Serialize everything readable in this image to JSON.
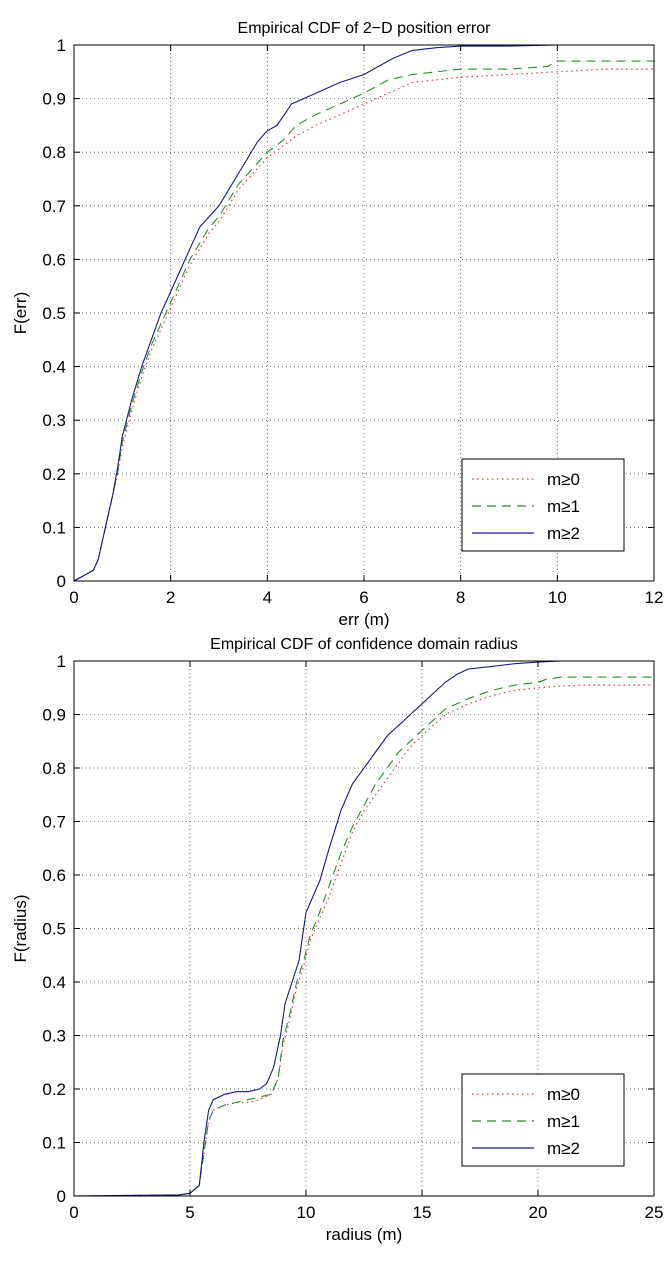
{
  "colors": {
    "m0": "#d04040",
    "m1": "#2e8b2e",
    "m2": "#1a1a8c",
    "grid": "#555555",
    "axes": "#000000"
  },
  "chart_data": [
    {
      "type": "line",
      "title": "Empirical CDF of 2−D position error",
      "xlabel": "err (m)",
      "ylabel": "F(err)",
      "xlim": [
        0,
        12
      ],
      "ylim": [
        0,
        1
      ],
      "xticks": [
        0,
        2,
        4,
        6,
        8,
        10,
        12
      ],
      "yticks": [
        0,
        0.1,
        0.2,
        0.3,
        0.4,
        0.5,
        0.6,
        0.7,
        0.8,
        0.9,
        1
      ],
      "xtick_labels": [
        "0",
        "2",
        "4",
        "6",
        "8",
        "10",
        "12"
      ],
      "ytick_labels": [
        "0",
        "0.1",
        "0.2",
        "0.3",
        "0.4",
        "0.5",
        "0.6",
        "0.7",
        "0.8",
        "0.9",
        "1"
      ],
      "grid": true,
      "legend_position": "bottom-right",
      "series": [
        {
          "name": "m≥0",
          "style": "dotted",
          "color": "#d04040",
          "x": [
            0,
            0.2,
            0.4,
            0.5,
            0.6,
            0.7,
            0.8,
            0.9,
            1.0,
            1.2,
            1.4,
            1.6,
            1.8,
            2.0,
            2.2,
            2.4,
            2.6,
            2.8,
            3.0,
            3.2,
            3.4,
            3.6,
            3.8,
            4.0,
            4.3,
            4.6,
            5.0,
            5.5,
            6.0,
            6.5,
            7.0,
            7.5,
            8.0,
            9.0,
            10.0,
            11.0,
            12.0
          ],
          "y": [
            0,
            0.01,
            0.02,
            0.04,
            0.08,
            0.12,
            0.16,
            0.2,
            0.25,
            0.32,
            0.38,
            0.43,
            0.47,
            0.51,
            0.55,
            0.59,
            0.62,
            0.65,
            0.67,
            0.7,
            0.73,
            0.75,
            0.77,
            0.79,
            0.81,
            0.83,
            0.85,
            0.87,
            0.89,
            0.91,
            0.93,
            0.935,
            0.94,
            0.945,
            0.95,
            0.955,
            0.955
          ]
        },
        {
          "name": "m≥1",
          "style": "dashed",
          "color": "#2e8b2e",
          "x": [
            0,
            0.2,
            0.4,
            0.5,
            0.6,
            0.7,
            0.8,
            0.9,
            1.0,
            1.2,
            1.4,
            1.6,
            1.8,
            2.0,
            2.2,
            2.4,
            2.6,
            2.8,
            3.0,
            3.2,
            3.4,
            3.6,
            3.8,
            4.0,
            4.3,
            4.6,
            5.0,
            5.5,
            6.0,
            6.5,
            7.0,
            7.5,
            8.0,
            9.0,
            9.8,
            10.0,
            11.0,
            12.0
          ],
          "y": [
            0,
            0.01,
            0.02,
            0.04,
            0.08,
            0.12,
            0.16,
            0.2,
            0.26,
            0.33,
            0.39,
            0.44,
            0.48,
            0.52,
            0.56,
            0.6,
            0.63,
            0.66,
            0.68,
            0.71,
            0.74,
            0.76,
            0.78,
            0.8,
            0.82,
            0.85,
            0.87,
            0.89,
            0.91,
            0.935,
            0.945,
            0.95,
            0.955,
            0.955,
            0.96,
            0.97,
            0.97,
            0.97
          ]
        },
        {
          "name": "m≥2",
          "style": "solid",
          "color": "#1a1a8c",
          "x": [
            0,
            0.2,
            0.4,
            0.5,
            0.6,
            0.7,
            0.8,
            0.9,
            1.0,
            1.2,
            1.4,
            1.6,
            1.8,
            2.0,
            2.2,
            2.4,
            2.6,
            2.8,
            3.0,
            3.2,
            3.4,
            3.6,
            3.8,
            4.0,
            4.2,
            4.5,
            5.0,
            5.5,
            6.0,
            6.3,
            6.6,
            7.0,
            7.5,
            8.0,
            9.0,
            10.0,
            11.0,
            12.0
          ],
          "y": [
            0,
            0.01,
            0.02,
            0.04,
            0.08,
            0.12,
            0.16,
            0.21,
            0.27,
            0.34,
            0.4,
            0.45,
            0.5,
            0.54,
            0.58,
            0.62,
            0.66,
            0.68,
            0.7,
            0.73,
            0.76,
            0.79,
            0.82,
            0.84,
            0.85,
            0.89,
            0.91,
            0.93,
            0.945,
            0.96,
            0.975,
            0.99,
            0.995,
            0.998,
            0.998,
            1.0,
            1.0,
            1.0
          ]
        }
      ]
    },
    {
      "type": "line",
      "title": "Empirical CDF of confidence domain radius",
      "xlabel": "radius (m)",
      "ylabel": "F(radius)",
      "xlim": [
        0,
        25
      ],
      "ylim": [
        0,
        1
      ],
      "xticks": [
        0,
        5,
        10,
        15,
        20,
        25
      ],
      "yticks": [
        0,
        0.1,
        0.2,
        0.3,
        0.4,
        0.5,
        0.6,
        0.7,
        0.8,
        0.9,
        1
      ],
      "xtick_labels": [
        "0",
        "5",
        "10",
        "15",
        "20",
        "25"
      ],
      "ytick_labels": [
        "0",
        "0.1",
        "0.2",
        "0.3",
        "0.4",
        "0.5",
        "0.6",
        "0.7",
        "0.8",
        "0.9",
        "1"
      ],
      "grid": true,
      "legend_position": "bottom-right",
      "series": [
        {
          "name": "m≥0",
          "style": "dotted",
          "color": "#d04040",
          "x": [
            0,
            4.5,
            5.0,
            5.4,
            5.6,
            5.8,
            6.0,
            6.5,
            7.0,
            7.5,
            8.0,
            8.5,
            8.8,
            9.0,
            9.3,
            9.6,
            9.9,
            10.2,
            10.5,
            11.0,
            11.5,
            12.0,
            12.5,
            13.0,
            13.5,
            14.0,
            14.5,
            15.0,
            15.5,
            16.0,
            17.0,
            18.0,
            19.0,
            20.0,
            21.0,
            22.0,
            25.0
          ],
          "y": [
            0,
            0.002,
            0.005,
            0.02,
            0.08,
            0.14,
            0.16,
            0.17,
            0.175,
            0.175,
            0.18,
            0.19,
            0.22,
            0.28,
            0.33,
            0.39,
            0.43,
            0.48,
            0.51,
            0.56,
            0.62,
            0.68,
            0.72,
            0.75,
            0.78,
            0.81,
            0.84,
            0.86,
            0.88,
            0.9,
            0.92,
            0.935,
            0.945,
            0.95,
            0.953,
            0.955,
            0.955
          ]
        },
        {
          "name": "m≥1",
          "style": "dashed",
          "color": "#2e8b2e",
          "x": [
            0,
            4.5,
            5.0,
            5.4,
            5.6,
            5.8,
            6.0,
            6.5,
            7.0,
            7.5,
            8.0,
            8.5,
            8.8,
            9.0,
            9.3,
            9.6,
            9.9,
            10.2,
            10.5,
            11.0,
            11.5,
            12.0,
            12.5,
            13.0,
            13.5,
            14.0,
            14.5,
            15.0,
            15.5,
            16.0,
            17.0,
            18.0,
            19.0,
            20.0,
            20.3,
            21.0,
            22.0,
            25.0
          ],
          "y": [
            0,
            0.002,
            0.005,
            0.02,
            0.08,
            0.14,
            0.16,
            0.17,
            0.175,
            0.18,
            0.185,
            0.19,
            0.22,
            0.29,
            0.34,
            0.4,
            0.44,
            0.49,
            0.52,
            0.58,
            0.64,
            0.69,
            0.73,
            0.77,
            0.8,
            0.83,
            0.85,
            0.87,
            0.89,
            0.91,
            0.93,
            0.945,
            0.955,
            0.96,
            0.965,
            0.97,
            0.97,
            0.97
          ]
        },
        {
          "name": "m≥2",
          "style": "solid",
          "color": "#1a1a8c",
          "x": [
            0,
            4.5,
            5.0,
            5.4,
            5.6,
            5.8,
            6.0,
            6.5,
            7.0,
            7.5,
            8.0,
            8.3,
            8.6,
            8.9,
            9.1,
            9.4,
            9.7,
            10.0,
            10.3,
            10.6,
            11.0,
            11.5,
            12.0,
            12.5,
            13.0,
            13.5,
            14.0,
            14.5,
            15.0,
            15.5,
            16.0,
            16.5,
            17.0,
            18.0,
            19.0,
            20.0,
            21.0,
            25.0
          ],
          "y": [
            0,
            0.002,
            0.005,
            0.02,
            0.1,
            0.16,
            0.18,
            0.19,
            0.195,
            0.195,
            0.2,
            0.21,
            0.24,
            0.3,
            0.36,
            0.4,
            0.44,
            0.53,
            0.56,
            0.59,
            0.65,
            0.72,
            0.77,
            0.8,
            0.83,
            0.86,
            0.88,
            0.9,
            0.92,
            0.94,
            0.96,
            0.975,
            0.985,
            0.99,
            0.995,
            0.998,
            1.0,
            1.0
          ]
        }
      ]
    }
  ]
}
